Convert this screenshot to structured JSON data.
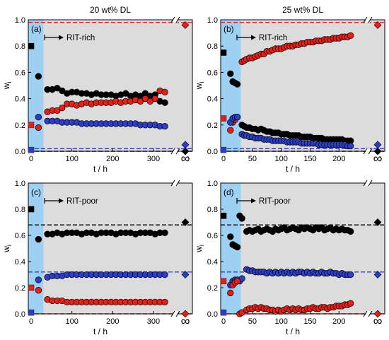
{
  "chart_data": [
    {
      "type": "scatter",
      "panel_label": "(a)",
      "title": "20 wt% DL",
      "annotation": "RIT-rich",
      "xlabel": "t / h",
      "ylabel": "w",
      "ylabel_sub": "i",
      "xlim": [
        0,
        340
      ],
      "ylim": [
        0,
        1
      ],
      "xticks": [
        "0",
        "100",
        "200",
        "300"
      ],
      "yticks": [
        "0.0",
        "0.2",
        "0.4",
        "0.6",
        "0.8",
        "1.0"
      ],
      "infinity_label": "∞",
      "shaded_start": [
        0,
        30
      ],
      "initial_points": {
        "black": 0.8,
        "red": 0.2,
        "blue": 0.01
      },
      "limit_points": {
        "red": 0.96,
        "blue": 0.05,
        "black": 0.0
      },
      "reference_lines": {
        "red": 0.98,
        "blue": 0.02,
        "black": 0.0
      },
      "series": [
        {
          "name": "",
          "color": "#000000",
          "x": [
            18,
            40,
            52,
            64,
            76,
            88,
            100,
            112,
            124,
            136,
            148,
            160,
            172,
            184,
            196,
            208,
            220,
            232,
            244,
            256,
            268,
            280,
            292,
            304,
            316,
            328
          ],
          "y": [
            0.57,
            0.47,
            0.47,
            0.48,
            0.46,
            0.44,
            0.45,
            0.45,
            0.44,
            0.44,
            0.43,
            0.44,
            0.43,
            0.43,
            0.43,
            0.42,
            0.43,
            0.44,
            0.42,
            0.43,
            0.42,
            0.44,
            0.42,
            0.43,
            0.38,
            0.37
          ]
        },
        {
          "name": "",
          "color": "#e32119",
          "x": [
            18,
            40,
            52,
            64,
            76,
            88,
            100,
            112,
            124,
            136,
            148,
            160,
            172,
            184,
            196,
            208,
            220,
            232,
            244,
            256,
            268,
            280,
            292,
            304,
            316,
            328
          ],
          "y": [
            0.18,
            0.3,
            0.31,
            0.31,
            0.33,
            0.36,
            0.36,
            0.35,
            0.36,
            0.37,
            0.36,
            0.37,
            0.37,
            0.37,
            0.37,
            0.38,
            0.37,
            0.38,
            0.38,
            0.39,
            0.38,
            0.4,
            0.38,
            0.4,
            0.46,
            0.45
          ]
        },
        {
          "name": "",
          "color": "#2d3ec4",
          "x": [
            18,
            40,
            52,
            64,
            76,
            88,
            100,
            112,
            124,
            136,
            148,
            160,
            172,
            184,
            196,
            208,
            220,
            232,
            244,
            256,
            268,
            280,
            292,
            304,
            316,
            328
          ],
          "y": [
            0.26,
            0.23,
            0.23,
            0.23,
            0.22,
            0.22,
            0.22,
            0.22,
            0.21,
            0.21,
            0.21,
            0.21,
            0.21,
            0.21,
            0.21,
            0.21,
            0.21,
            0.21,
            0.21,
            0.21,
            0.2,
            0.2,
            0.2,
            0.2,
            0.19,
            0.19
          ]
        }
      ]
    },
    {
      "type": "scatter",
      "panel_label": "(b)",
      "title": "25 wt% DL",
      "annotation": "RIT-rich",
      "xlabel": "t / h",
      "ylabel": "w",
      "ylabel_sub": "i",
      "xlim": [
        0,
        240
      ],
      "ylim": [
        0,
        1
      ],
      "xticks": [
        "0",
        "50",
        "100",
        "150",
        "200"
      ],
      "yticks": [
        "0.0",
        "0.2",
        "0.4",
        "0.6",
        "0.8",
        "1.0"
      ],
      "infinity_label": "∞",
      "shaded_start": [
        0,
        30
      ],
      "initial_points": {
        "black": 0.75,
        "red": 0.25,
        "blue": 0.01
      },
      "limit_points": {
        "red": 0.96,
        "blue": 0.05,
        "black": 0.0
      },
      "reference_lines": {
        "red": 0.98,
        "blue": 0.02,
        "black": 0.0
      },
      "series": [
        {
          "name": "",
          "color": "#000000",
          "x": [
            12,
            16,
            20,
            24,
            32,
            36,
            40,
            45,
            50,
            55,
            60,
            65,
            70,
            75,
            80,
            85,
            90,
            95,
            100,
            105,
            110,
            115,
            120,
            125,
            130,
            135,
            140,
            145,
            150,
            155,
            160,
            165,
            170,
            175,
            180,
            185,
            190,
            195,
            200,
            205,
            210,
            215,
            220
          ],
          "y": [
            0.59,
            0.53,
            0.52,
            0.51,
            0.2,
            0.19,
            0.18,
            0.18,
            0.17,
            0.17,
            0.16,
            0.17,
            0.16,
            0.15,
            0.15,
            0.14,
            0.14,
            0.14,
            0.13,
            0.13,
            0.13,
            0.12,
            0.12,
            0.12,
            0.12,
            0.11,
            0.11,
            0.11,
            0.11,
            0.1,
            0.1,
            0.1,
            0.1,
            0.09,
            0.09,
            0.09,
            0.09,
            0.09,
            0.09,
            0.09,
            0.08,
            0.08,
            0.08
          ]
        },
        {
          "name": "",
          "color": "#e32119",
          "x": [
            12,
            16,
            20,
            24,
            32,
            36,
            40,
            45,
            50,
            55,
            60,
            65,
            70,
            75,
            80,
            85,
            90,
            95,
            100,
            105,
            110,
            115,
            120,
            125,
            130,
            135,
            140,
            145,
            150,
            155,
            160,
            165,
            170,
            175,
            180,
            185,
            190,
            195,
            200,
            205,
            210,
            215,
            220
          ],
          "y": [
            0.16,
            0.22,
            0.24,
            0.26,
            0.68,
            0.69,
            0.7,
            0.71,
            0.71,
            0.72,
            0.73,
            0.74,
            0.74,
            0.76,
            0.76,
            0.77,
            0.78,
            0.78,
            0.78,
            0.79,
            0.8,
            0.8,
            0.8,
            0.81,
            0.81,
            0.82,
            0.82,
            0.83,
            0.83,
            0.83,
            0.84,
            0.84,
            0.84,
            0.85,
            0.85,
            0.85,
            0.86,
            0.86,
            0.86,
            0.87,
            0.87,
            0.87,
            0.88
          ]
        },
        {
          "name": "",
          "color": "#2d3ec4",
          "x": [
            12,
            16,
            20,
            24,
            32,
            36,
            40,
            45,
            50,
            55,
            60,
            65,
            70,
            75,
            80,
            85,
            90,
            95,
            100,
            105,
            110,
            115,
            120,
            125,
            130,
            135,
            140,
            145,
            150,
            155,
            160,
            165,
            170,
            175,
            180,
            185,
            190,
            195,
            200,
            205,
            210,
            215,
            220
          ],
          "y": [
            0.22,
            0.25,
            0.26,
            0.26,
            0.13,
            0.12,
            0.12,
            0.11,
            0.11,
            0.1,
            0.1,
            0.1,
            0.09,
            0.09,
            0.09,
            0.08,
            0.08,
            0.08,
            0.08,
            0.08,
            0.07,
            0.07,
            0.07,
            0.07,
            0.07,
            0.06,
            0.06,
            0.06,
            0.06,
            0.06,
            0.06,
            0.05,
            0.05,
            0.05,
            0.05,
            0.05,
            0.05,
            0.05,
            0.05,
            0.05,
            0.05,
            0.04,
            0.04
          ]
        }
      ]
    },
    {
      "type": "scatter",
      "panel_label": "(c)",
      "title": "",
      "annotation": "RIT-poor",
      "xlabel": "t / h",
      "ylabel": "w",
      "ylabel_sub": "i",
      "xlim": [
        0,
        340
      ],
      "ylim": [
        0,
        1
      ],
      "xticks": [
        "0",
        "100",
        "200",
        "300"
      ],
      "yticks": [
        "0.0",
        "0.2",
        "0.4",
        "0.6",
        "0.8",
        "1.0"
      ],
      "infinity_label": "∞",
      "shaded_start": [
        0,
        30
      ],
      "initial_points": {
        "black": 0.8,
        "red": 0.2,
        "blue": 0.01
      },
      "limit_points": {
        "black": 0.7,
        "blue": 0.3,
        "red": 0.0
      },
      "reference_lines": {
        "black": 0.68,
        "blue": 0.32,
        "red": 0.0
      },
      "series": [
        {
          "name": "",
          "color": "#000000",
          "x": [
            18,
            40,
            52,
            64,
            76,
            88,
            100,
            112,
            124,
            136,
            148,
            160,
            172,
            184,
            196,
            208,
            220,
            232,
            244,
            256,
            268,
            280,
            292,
            304,
            316,
            328
          ],
          "y": [
            0.57,
            0.61,
            0.61,
            0.62,
            0.61,
            0.62,
            0.62,
            0.62,
            0.61,
            0.62,
            0.62,
            0.61,
            0.62,
            0.62,
            0.62,
            0.61,
            0.62,
            0.62,
            0.62,
            0.61,
            0.62,
            0.62,
            0.62,
            0.61,
            0.62,
            0.62
          ]
        },
        {
          "name": "",
          "color": "#2d3ec4",
          "x": [
            18,
            40,
            52,
            64,
            76,
            88,
            100,
            112,
            124,
            136,
            148,
            160,
            172,
            184,
            196,
            208,
            220,
            232,
            244,
            256,
            268,
            280,
            292,
            304,
            316,
            328
          ],
          "y": [
            0.26,
            0.28,
            0.29,
            0.29,
            0.29,
            0.3,
            0.3,
            0.3,
            0.3,
            0.3,
            0.3,
            0.3,
            0.3,
            0.3,
            0.3,
            0.3,
            0.3,
            0.3,
            0.3,
            0.3,
            0.3,
            0.3,
            0.3,
            0.3,
            0.3,
            0.3
          ]
        },
        {
          "name": "",
          "color": "#e32119",
          "x": [
            18,
            40,
            52,
            64,
            76,
            88,
            100,
            112,
            124,
            136,
            148,
            160,
            172,
            184,
            196,
            208,
            220,
            232,
            244,
            256,
            268,
            280,
            292,
            304,
            316,
            328
          ],
          "y": [
            0.18,
            0.11,
            0.1,
            0.1,
            0.1,
            0.09,
            0.09,
            0.09,
            0.09,
            0.09,
            0.09,
            0.09,
            0.09,
            0.09,
            0.09,
            0.09,
            0.09,
            0.09,
            0.09,
            0.09,
            0.09,
            0.09,
            0.09,
            0.09,
            0.09,
            0.09
          ]
        }
      ]
    },
    {
      "type": "scatter",
      "panel_label": "(d)",
      "title": "",
      "annotation": "RIT-poor",
      "xlabel": "t / h",
      "ylabel": "w",
      "ylabel_sub": "i",
      "xlim": [
        0,
        240
      ],
      "ylim": [
        0,
        1
      ],
      "xticks": [
        "0",
        "50",
        "100",
        "150",
        "200"
      ],
      "yticks": [
        "0.0",
        "0.2",
        "0.4",
        "0.6",
        "0.8",
        "1.0"
      ],
      "infinity_label": "∞",
      "shaded_start": [
        0,
        30
      ],
      "initial_points": {
        "black": 0.75,
        "red": 0.25,
        "blue": 0.01
      },
      "limit_points": {
        "black": 0.7,
        "blue": 0.3,
        "red": 0.0
      },
      "reference_lines": {
        "black": 0.68,
        "blue": 0.32,
        "red": 0.0
      },
      "series": [
        {
          "name": "",
          "color": "#000000",
          "x": [
            12,
            16,
            20,
            24,
            28,
            32,
            40,
            45,
            50,
            55,
            60,
            65,
            70,
            75,
            80,
            85,
            90,
            95,
            100,
            105,
            110,
            115,
            120,
            125,
            130,
            135,
            140,
            145,
            150,
            155,
            160,
            165,
            170,
            175,
            180,
            185,
            190,
            195,
            200,
            205,
            210,
            215,
            220
          ],
          "y": [
            0.59,
            0.53,
            0.52,
            0.51,
            0.75,
            0.73,
            0.63,
            0.64,
            0.63,
            0.64,
            0.65,
            0.63,
            0.64,
            0.65,
            0.64,
            0.63,
            0.65,
            0.64,
            0.65,
            0.66,
            0.64,
            0.65,
            0.66,
            0.65,
            0.64,
            0.66,
            0.65,
            0.66,
            0.65,
            0.64,
            0.66,
            0.65,
            0.66,
            0.64,
            0.65,
            0.66,
            0.64,
            0.65,
            0.64,
            0.65,
            0.64,
            0.64,
            0.63
          ]
        },
        {
          "name": "",
          "color": "#2d3ec4",
          "x": [
            12,
            16,
            20,
            24,
            28,
            32,
            40,
            45,
            50,
            55,
            60,
            65,
            70,
            75,
            80,
            85,
            90,
            95,
            100,
            105,
            110,
            115,
            120,
            125,
            130,
            135,
            140,
            145,
            150,
            155,
            160,
            165,
            170,
            175,
            180,
            185,
            190,
            195,
            200,
            205,
            210,
            215,
            220
          ],
          "y": [
            0.22,
            0.25,
            0.26,
            0.26,
            0.25,
            0.27,
            0.34,
            0.33,
            0.33,
            0.32,
            0.32,
            0.32,
            0.32,
            0.31,
            0.32,
            0.31,
            0.32,
            0.31,
            0.32,
            0.31,
            0.32,
            0.31,
            0.32,
            0.31,
            0.32,
            0.32,
            0.31,
            0.32,
            0.31,
            0.32,
            0.31,
            0.31,
            0.32,
            0.31,
            0.31,
            0.32,
            0.31,
            0.31,
            0.3,
            0.31,
            0.3,
            0.3,
            0.3
          ]
        },
        {
          "name": "",
          "color": "#e32119",
          "x": [
            12,
            16,
            20,
            24,
            28,
            32,
            40,
            45,
            50,
            55,
            60,
            65,
            70,
            75,
            80,
            85,
            90,
            95,
            100,
            105,
            110,
            115,
            120,
            125,
            130,
            135,
            140,
            145,
            150,
            155,
            160,
            165,
            170,
            175,
            180,
            185,
            190,
            195,
            200,
            205,
            210,
            215,
            220
          ],
          "y": [
            0.16,
            0.22,
            0.24,
            0.25,
            0.0,
            0.01,
            0.03,
            0.04,
            0.04,
            0.05,
            0.04,
            0.05,
            0.04,
            0.04,
            0.03,
            0.03,
            0.02,
            0.03,
            0.02,
            0.03,
            0.04,
            0.03,
            0.04,
            0.03,
            0.04,
            0.03,
            0.03,
            0.04,
            0.04,
            0.05,
            0.04,
            0.04,
            0.05,
            0.05,
            0.04,
            0.05,
            0.05,
            0.06,
            0.06,
            0.06,
            0.07,
            0.07,
            0.08
          ]
        }
      ]
    }
  ]
}
